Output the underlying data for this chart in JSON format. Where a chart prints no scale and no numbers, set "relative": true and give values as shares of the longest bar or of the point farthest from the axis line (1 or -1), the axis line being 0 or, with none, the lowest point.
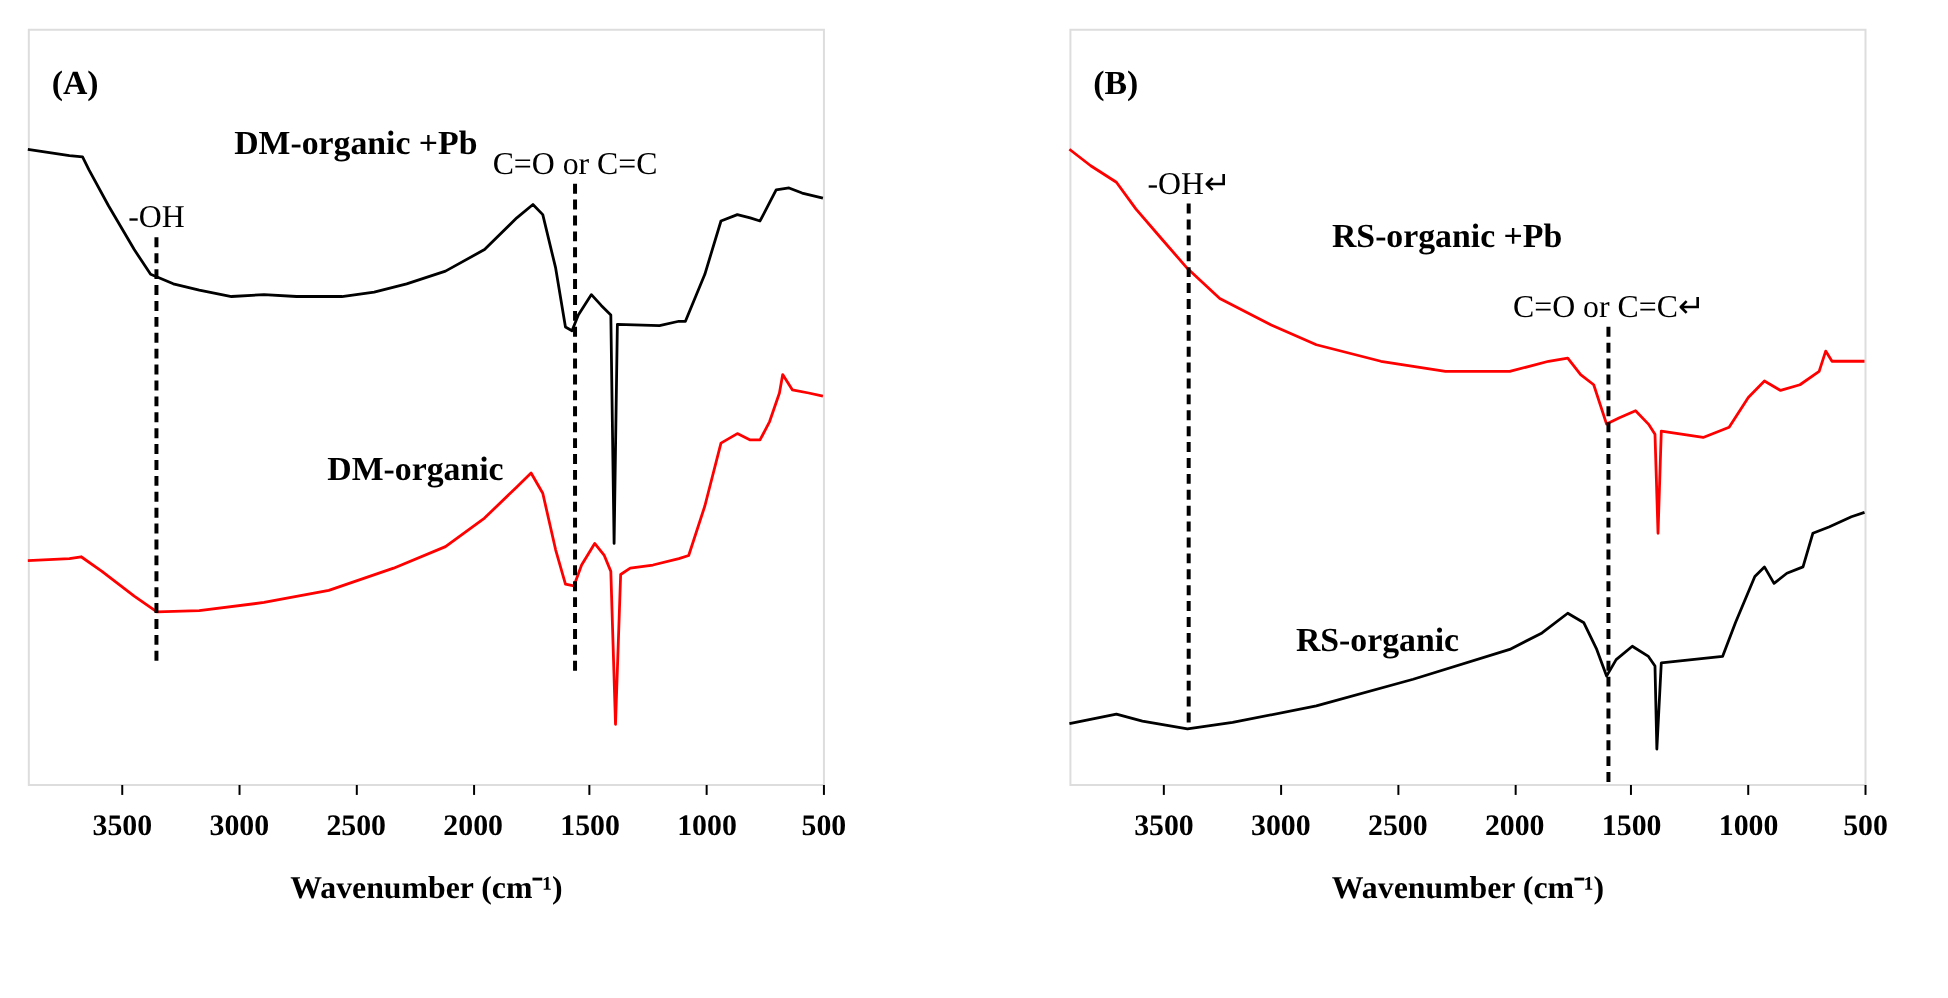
{
  "chart_data": [
    {
      "type": "line",
      "title": "(A)",
      "xlabel": "Wavenumber (cm⁻¹)",
      "relative": true,
      "xlim": [
        3900,
        500
      ],
      "xticks": [
        3500,
        3000,
        2500,
        2000,
        1500,
        1000,
        500
      ],
      "grid": false,
      "line_style": "solid",
      "ref_lines": [
        {
          "axis": "x",
          "value": 3350,
          "label": "-OH",
          "color": "#000000",
          "line_style": "dashed"
        },
        {
          "axis": "x",
          "value": 1560,
          "label": "C=O or C=C",
          "color": "#000000",
          "line_style": "dashed"
        }
      ],
      "series": [
        {
          "name": "DM-organic +Pb",
          "color": "#000000",
          "x": [
            3900,
            3722,
            3666,
            3639,
            3555,
            3445,
            3375,
            3278,
            3167,
            3029,
            2890,
            2751,
            2557,
            2419,
            2280,
            2114,
            1947,
            1809,
            1740,
            1698,
            1643,
            1601,
            1573,
            1546,
            1490,
            1448,
            1407,
            1393,
            1379,
            1199,
            1116,
            1088,
            1005,
            936,
            866,
            811,
            769,
            742,
            700,
            645,
            589,
            500
          ],
          "values": [
            1.0,
            0.99,
            0.988,
            0.968,
            0.911,
            0.842,
            0.803,
            0.788,
            0.778,
            0.768,
            0.771,
            0.768,
            0.768,
            0.775,
            0.788,
            0.808,
            0.842,
            0.892,
            0.913,
            0.897,
            0.813,
            0.72,
            0.714,
            0.739,
            0.771,
            0.754,
            0.739,
            0.379,
            0.724,
            0.722,
            0.729,
            0.729,
            0.803,
            0.887,
            0.897,
            0.892,
            0.887,
            0.906,
            0.936,
            0.939,
            0.931,
            0.923
          ]
        },
        {
          "name": "DM-organic",
          "color": "#ff0000",
          "x": [
            3900,
            3722,
            3672,
            3583,
            3445,
            3348,
            3167,
            2890,
            2613,
            2336,
            2114,
            1947,
            1809,
            1748,
            1698,
            1643,
            1601,
            1565,
            1532,
            1476,
            1435,
            1407,
            1387,
            1365,
            1324,
            1227,
            1116,
            1074,
            1005,
            936,
            866,
            811,
            769,
            728,
            686,
            672,
            631,
            561,
            500
          ],
          "values": [
            0.352,
            0.355,
            0.358,
            0.335,
            0.296,
            0.271,
            0.273,
            0.286,
            0.305,
            0.34,
            0.374,
            0.419,
            0.468,
            0.49,
            0.458,
            0.369,
            0.315,
            0.312,
            0.345,
            0.379,
            0.36,
            0.335,
            0.094,
            0.33,
            0.34,
            0.345,
            0.355,
            0.36,
            0.438,
            0.537,
            0.552,
            0.542,
            0.542,
            0.571,
            0.616,
            0.645,
            0.621,
            0.616,
            0.611
          ]
        }
      ]
    },
    {
      "type": "line",
      "title": "(B)",
      "xlabel": "Wavenumber (cm⁻¹)",
      "relative": true,
      "xlim": [
        3900,
        500
      ],
      "xticks": [
        3500,
        3000,
        2500,
        2000,
        1500,
        1000,
        500
      ],
      "grid": false,
      "line_style": "solid",
      "ref_lines": [
        {
          "axis": "x",
          "value": 3390,
          "label": "-OH↵",
          "color": "#000000",
          "line_style": "dashed"
        },
        {
          "axis": "x",
          "value": 1595,
          "label": "C=O or C=C↵",
          "color": "#000000",
          "line_style": "dashed"
        }
      ],
      "series": [
        {
          "name": "RS-organic +Pb",
          "color": "#ff0000",
          "x": [
            3900,
            3809,
            3699,
            3616,
            3506,
            3395,
            3257,
            3037,
            2844,
            2568,
            2292,
            2017,
            1851,
            1769,
            1714,
            1658,
            1603,
            1548,
            1479,
            1424,
            1396,
            1383,
            1369,
            1190,
            1079,
            997,
            928,
            859,
            776,
            694,
            666,
            639,
            500
          ],
          "values": [
            1.0,
            0.974,
            0.948,
            0.906,
            0.859,
            0.812,
            0.765,
            0.723,
            0.692,
            0.666,
            0.65,
            0.65,
            0.666,
            0.671,
            0.645,
            0.629,
            0.567,
            0.577,
            0.588,
            0.567,
            0.551,
            0.395,
            0.556,
            0.546,
            0.562,
            0.609,
            0.635,
            0.62,
            0.629,
            0.65,
            0.682,
            0.666,
            0.666
          ]
        },
        {
          "name": "RS-organic",
          "color": "#000000",
          "x": [
            3900,
            3699,
            3588,
            3395,
            3202,
            2844,
            2430,
            2017,
            1879,
            1769,
            1700,
            1645,
            1603,
            1562,
            1493,
            1424,
            1396,
            1388,
            1369,
            1107,
            1052,
            969,
            928,
            887,
            832,
            763,
            721,
            652,
            556,
            500
          ],
          "values": [
            0.095,
            0.11,
            0.099,
            0.087,
            0.097,
            0.123,
            0.165,
            0.212,
            0.238,
            0.269,
            0.254,
            0.212,
            0.17,
            0.196,
            0.217,
            0.201,
            0.186,
            0.055,
            0.191,
            0.201,
            0.254,
            0.327,
            0.342,
            0.316,
            0.332,
            0.342,
            0.395,
            0.405,
            0.421,
            0.428
          ]
        }
      ]
    }
  ]
}
